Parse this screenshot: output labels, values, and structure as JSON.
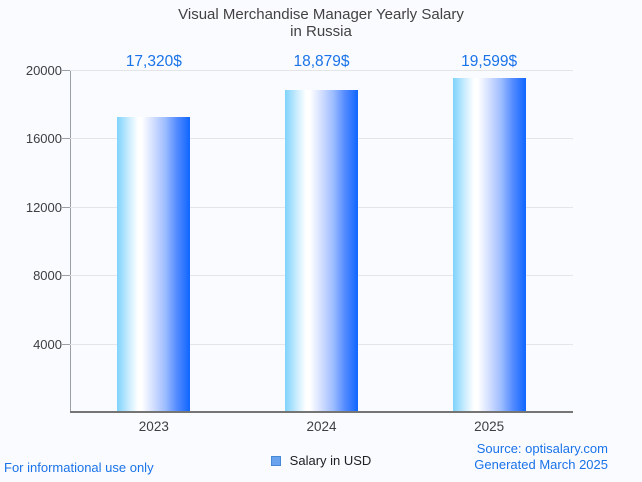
{
  "chart_data": {
    "type": "bar",
    "title": "Visual Merchandise Manager Yearly Salary",
    "subtitle": "in Russia",
    "categories": [
      "2023",
      "2024",
      "2025"
    ],
    "series": [
      {
        "name": "Salary in USD",
        "values": [
          17320,
          18879,
          19599
        ]
      }
    ],
    "value_labels": [
      "17,320$",
      "18,879$",
      "19,599$"
    ],
    "ylim": [
      0,
      20000
    ],
    "yticks": [
      4000,
      8000,
      12000,
      16000,
      20000
    ],
    "grid": true,
    "legend_position": "bottom"
  },
  "legend": {
    "label": "Salary in USD",
    "swatch_color": "#69a3ee",
    "swatch_border": "#4688d8"
  },
  "footer": {
    "left_note": "For informational use only",
    "source": "Source: optisalary.com",
    "generated": "Generated March 2025"
  },
  "colors": {
    "accent_blue": "#1a73e8",
    "bar_gradient_left": "#7ed3fc",
    "bar_gradient_mid": "#ffffff",
    "bar_gradient_right": "#0f66ff",
    "grid": "#e3e5e9",
    "axis": "#9aa0a6",
    "baseline": "#757575",
    "title_text": "#424242",
    "tick_text": "#3c4043",
    "background": "#fafbff"
  }
}
